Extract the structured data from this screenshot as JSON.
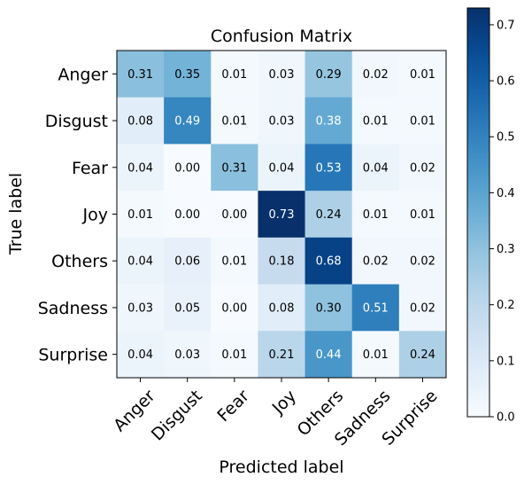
{
  "chart_data": {
    "type": "heatmap",
    "title": "Confusion Matrix",
    "xlabel": "Predicted label",
    "ylabel": "True label",
    "x_categories": [
      "Anger",
      "Disgust",
      "Fear",
      "Joy",
      "Others",
      "Sadness",
      "Surprise"
    ],
    "y_categories": [
      "Anger",
      "Disgust",
      "Fear",
      "Joy",
      "Others",
      "Sadness",
      "Surprise"
    ],
    "values": [
      [
        0.31,
        0.35,
        0.01,
        0.03,
        0.29,
        0.02,
        0.01
      ],
      [
        0.08,
        0.49,
        0.01,
        0.03,
        0.38,
        0.01,
        0.01
      ],
      [
        0.04,
        0.0,
        0.31,
        0.04,
        0.53,
        0.04,
        0.02
      ],
      [
        0.01,
        0.0,
        0.0,
        0.73,
        0.24,
        0.01,
        0.01
      ],
      [
        0.04,
        0.06,
        0.01,
        0.18,
        0.68,
        0.02,
        0.02
      ],
      [
        0.03,
        0.05,
        0.0,
        0.08,
        0.3,
        0.51,
        0.02
      ],
      [
        0.04,
        0.03,
        0.01,
        0.21,
        0.44,
        0.01,
        0.24
      ]
    ],
    "value_labels": [
      [
        "0.31",
        "0.35",
        "0.01",
        "0.03",
        "0.29",
        "0.02",
        "0.01"
      ],
      [
        "0.08",
        "0.49",
        "0.01",
        "0.03",
        "0.38",
        "0.01",
        "0.01"
      ],
      [
        "0.04",
        "0.00",
        "0.31",
        "0.04",
        "0.53",
        "0.04",
        "0.02"
      ],
      [
        "0.01",
        "0.00",
        "0.00",
        "0.73",
        "0.24",
        "0.01",
        "0.01"
      ],
      [
        "0.04",
        "0.06",
        "0.01",
        "0.18",
        "0.68",
        "0.02",
        "0.02"
      ],
      [
        "0.03",
        "0.05",
        "0.00",
        "0.08",
        "0.30",
        "0.51",
        "0.02"
      ],
      [
        "0.04",
        "0.03",
        "0.01",
        "0.21",
        "0.44",
        "0.01",
        "0.24"
      ]
    ],
    "colormap": "Blues",
    "colorbar": {
      "vmin": 0.0,
      "vmax": 0.73,
      "ticks": [
        0.0,
        0.1,
        0.2,
        0.3,
        0.4,
        0.5,
        0.6,
        0.7
      ],
      "tick_labels": [
        "0.0",
        "0.1",
        "0.2",
        "0.3",
        "0.4",
        "0.5",
        "0.6",
        "0.7"
      ]
    },
    "text_colors": {
      "dark_cell": "#ffffff",
      "light_cell": "#000000"
    },
    "text_threshold": 0.365,
    "grid": false
  }
}
